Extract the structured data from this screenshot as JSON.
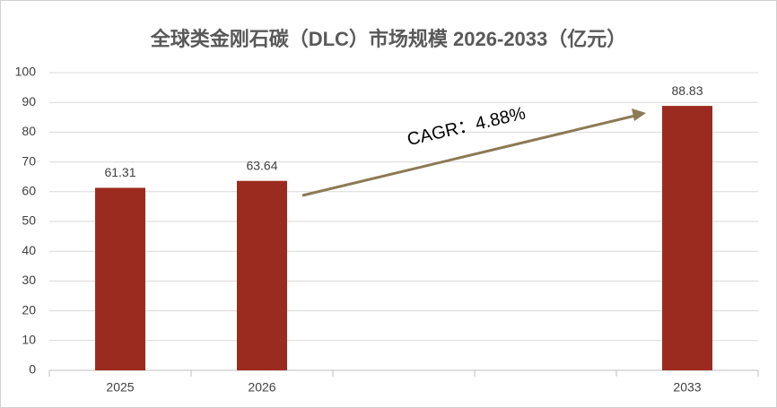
{
  "chart_data": {
    "type": "bar",
    "title": "全球类金刚石碳（DLC）市场规模 2026-2033（亿元）",
    "categories": [
      "2025",
      "2026",
      null,
      null,
      "2033"
    ],
    "values": [
      61.31,
      63.64,
      null,
      null,
      88.83
    ],
    "color": "#9c2b1f",
    "ylim": [
      0,
      100
    ],
    "yticks": [
      0,
      10,
      20,
      30,
      40,
      50,
      60,
      70,
      80,
      90,
      100
    ],
    "grid": true,
    "annotation": "CAGR：4.88%"
  }
}
